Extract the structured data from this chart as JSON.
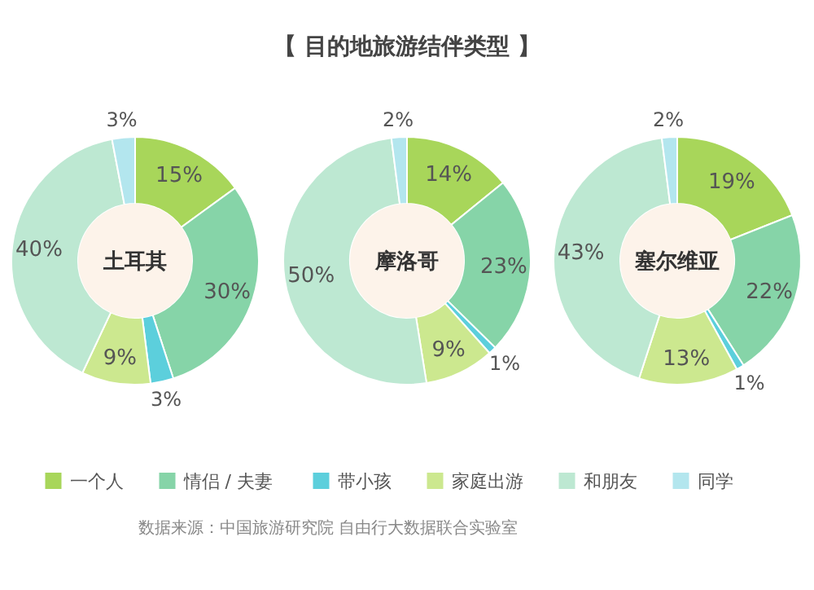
{
  "chart_data": {
    "type": "donut",
    "title": "【 目的地旅游结伴类型 】",
    "categories": [
      "一个人",
      "情侣 / 夫妻",
      "带小孩",
      "家庭出游",
      "和朋友",
      "同学"
    ],
    "colors": [
      "#a8d65a",
      "#86d4a8",
      "#5ccfdc",
      "#cce88f",
      "#bde8d2",
      "#b3e6ee"
    ],
    "legend": "bottom",
    "series": [
      {
        "name": "土耳其",
        "values": [
          15,
          30,
          3,
          9,
          40,
          3
        ],
        "value_labels": [
          "15%",
          "30%",
          "3%",
          "9%",
          "40%",
          "3%"
        ]
      },
      {
        "name": "摩洛哥",
        "values": [
          14,
          23,
          1,
          9,
          50,
          2
        ],
        "value_labels": [
          "14%",
          "23%",
          "1%",
          "9%",
          "50%",
          "2%"
        ]
      },
      {
        "name": "塞尔维亚",
        "values": [
          19,
          22,
          1,
          13,
          43,
          2
        ],
        "value_labels": [
          "19%",
          "22%",
          "1%",
          "13%",
          "43%",
          "2%"
        ]
      }
    ],
    "annotations": [
      "数据来源：中国旅游研究院 自由行大数据联合实验室"
    ]
  }
}
